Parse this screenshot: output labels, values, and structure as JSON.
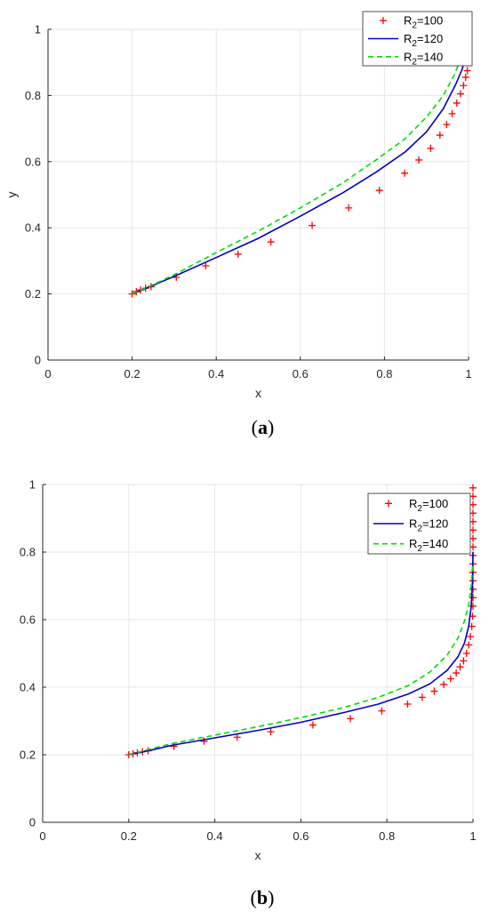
{
  "chart_data": [
    {
      "type": "line",
      "caption": "a",
      "xlabel": "x",
      "ylabel": "y",
      "xlim": [
        0,
        1
      ],
      "ylim": [
        0,
        1
      ],
      "xticks": [
        "0",
        "0.2",
        "0.4",
        "0.6",
        "0.8",
        "1"
      ],
      "yticks": [
        "0",
        "0.2",
        "0.4",
        "0.6",
        "0.8",
        "1"
      ],
      "grid": true,
      "legend_position": "top-right",
      "series": [
        {
          "name": "R2=100",
          "label_base": "R",
          "label_sub": "2",
          "label_rest": "=100",
          "style": "markers-plus",
          "color": "#ff0000",
          "x": [
            0.2,
            0.21,
            0.22,
            0.232,
            0.245,
            0.305,
            0.375,
            0.452,
            0.53,
            0.628,
            0.715,
            0.788,
            0.848,
            0.882,
            0.91,
            0.932,
            0.948,
            0.961,
            0.972,
            0.981,
            0.988,
            0.993,
            0.997,
            0.999,
            1.0,
            1.0,
            1.0,
            1.0,
            1.0,
            1.0
          ],
          "y": [
            0.2,
            0.207,
            0.212,
            0.217,
            0.222,
            0.25,
            0.285,
            0.32,
            0.357,
            0.407,
            0.46,
            0.513,
            0.565,
            0.605,
            0.64,
            0.68,
            0.712,
            0.745,
            0.777,
            0.805,
            0.83,
            0.855,
            0.875,
            0.9,
            0.925,
            0.945,
            0.96,
            0.975,
            0.988,
            0.997
          ]
        },
        {
          "name": "R2=120",
          "label_base": "R",
          "label_sub": "2",
          "label_rest": "=120",
          "style": "solid",
          "color": "#0000cc",
          "x": [
            0.2,
            0.25,
            0.3,
            0.4,
            0.5,
            0.6,
            0.7,
            0.78,
            0.85,
            0.9,
            0.94,
            0.97,
            0.985,
            0.995,
            1.0
          ],
          "y": [
            0.2,
            0.226,
            0.253,
            0.31,
            0.368,
            0.435,
            0.505,
            0.568,
            0.63,
            0.69,
            0.76,
            0.835,
            0.88,
            0.93,
            0.98
          ]
        },
        {
          "name": "R2=140",
          "label_base": "R",
          "label_sub": "2",
          "label_rest": "=140",
          "style": "dashed",
          "color": "#00dd00",
          "x": [
            0.2,
            0.25,
            0.3,
            0.4,
            0.5,
            0.6,
            0.7,
            0.78,
            0.85,
            0.9,
            0.94,
            0.965,
            0.98,
            0.99,
            0.995
          ],
          "y": [
            0.2,
            0.228,
            0.258,
            0.325,
            0.39,
            0.46,
            0.535,
            0.605,
            0.67,
            0.735,
            0.8,
            0.86,
            0.905,
            0.945,
            0.97
          ]
        }
      ]
    },
    {
      "type": "line",
      "caption": "b",
      "xlabel": "x",
      "ylabel": "",
      "xlim": [
        0,
        1
      ],
      "ylim": [
        0,
        1
      ],
      "xticks": [
        "0",
        "0.2",
        "0.4",
        "0.6",
        "0.8",
        "1"
      ],
      "yticks": [
        "0",
        "0.2",
        "0.4",
        "0.6",
        "0.8",
        "1"
      ],
      "grid": true,
      "legend_position": "top-right",
      "series": [
        {
          "name": "R2=100",
          "label_base": "R",
          "label_sub": "2",
          "label_rest": "=100",
          "style": "markers-plus",
          "color": "#ff0000",
          "x": [
            0.2,
            0.21,
            0.22,
            0.232,
            0.245,
            0.305,
            0.375,
            0.452,
            0.53,
            0.628,
            0.715,
            0.788,
            0.848,
            0.882,
            0.91,
            0.932,
            0.948,
            0.961,
            0.97,
            0.978,
            0.985,
            0.99,
            0.994,
            0.997,
            0.999,
            1.0,
            1.0,
            1.0,
            1.0,
            1.0,
            1.0,
            1.0,
            1.0,
            1.0,
            1.0,
            1.0,
            1.0,
            1.0,
            1.0,
            1.0
          ],
          "y": [
            0.2,
            0.203,
            0.206,
            0.209,
            0.212,
            0.225,
            0.24,
            0.252,
            0.268,
            0.288,
            0.307,
            0.33,
            0.35,
            0.37,
            0.388,
            0.408,
            0.425,
            0.442,
            0.46,
            0.478,
            0.5,
            0.525,
            0.55,
            0.58,
            0.61,
            0.64,
            0.665,
            0.69,
            0.715,
            0.74,
            0.765,
            0.79,
            0.815,
            0.84,
            0.865,
            0.89,
            0.915,
            0.94,
            0.965,
            0.99
          ]
        },
        {
          "name": "R2=120",
          "label_base": "R",
          "label_sub": "2",
          "label_rest": "=120",
          "style": "solid",
          "color": "#0000cc",
          "x": [
            0.2,
            0.25,
            0.3,
            0.4,
            0.5,
            0.6,
            0.7,
            0.78,
            0.85,
            0.9,
            0.94,
            0.965,
            0.98,
            0.99,
            0.996,
            0.999,
            1.0
          ],
          "y": [
            0.2,
            0.213,
            0.228,
            0.25,
            0.272,
            0.296,
            0.325,
            0.35,
            0.38,
            0.41,
            0.45,
            0.49,
            0.53,
            0.58,
            0.64,
            0.72,
            0.8
          ]
        },
        {
          "name": "R2=140",
          "label_base": "R",
          "label_sub": "2",
          "label_rest": "=140",
          "style": "dashed",
          "color": "#00dd00",
          "x": [
            0.2,
            0.25,
            0.3,
            0.4,
            0.5,
            0.6,
            0.7,
            0.78,
            0.85,
            0.9,
            0.94,
            0.965,
            0.98,
            0.99,
            0.996,
            0.999
          ],
          "y": [
            0.2,
            0.217,
            0.233,
            0.258,
            0.283,
            0.31,
            0.34,
            0.37,
            0.405,
            0.445,
            0.495,
            0.545,
            0.595,
            0.645,
            0.7,
            0.76
          ]
        }
      ]
    }
  ]
}
